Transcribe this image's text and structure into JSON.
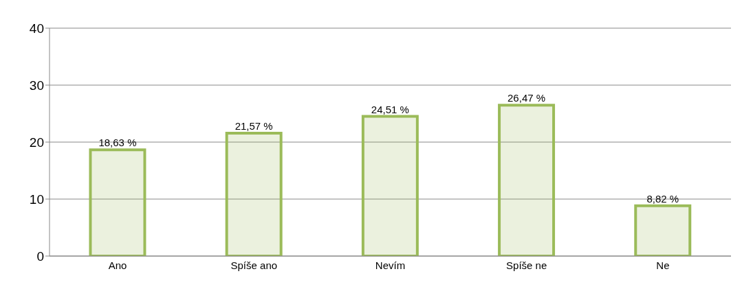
{
  "chart_data": {
    "type": "bar",
    "categories": [
      "Ano",
      "Spíše ano",
      "Nevím",
      "Spíše ne",
      "Ne"
    ],
    "values": [
      18.63,
      21.57,
      24.51,
      26.47,
      8.82
    ],
    "value_labels": [
      "18,63 %",
      "21,57 %",
      "24,51 %",
      "26,47 %",
      "8,82 %"
    ],
    "color": "#9bbb59",
    "ylim": [
      0,
      40
    ],
    "yticks": [
      0,
      10,
      20,
      30,
      40
    ],
    "grid": "y"
  }
}
